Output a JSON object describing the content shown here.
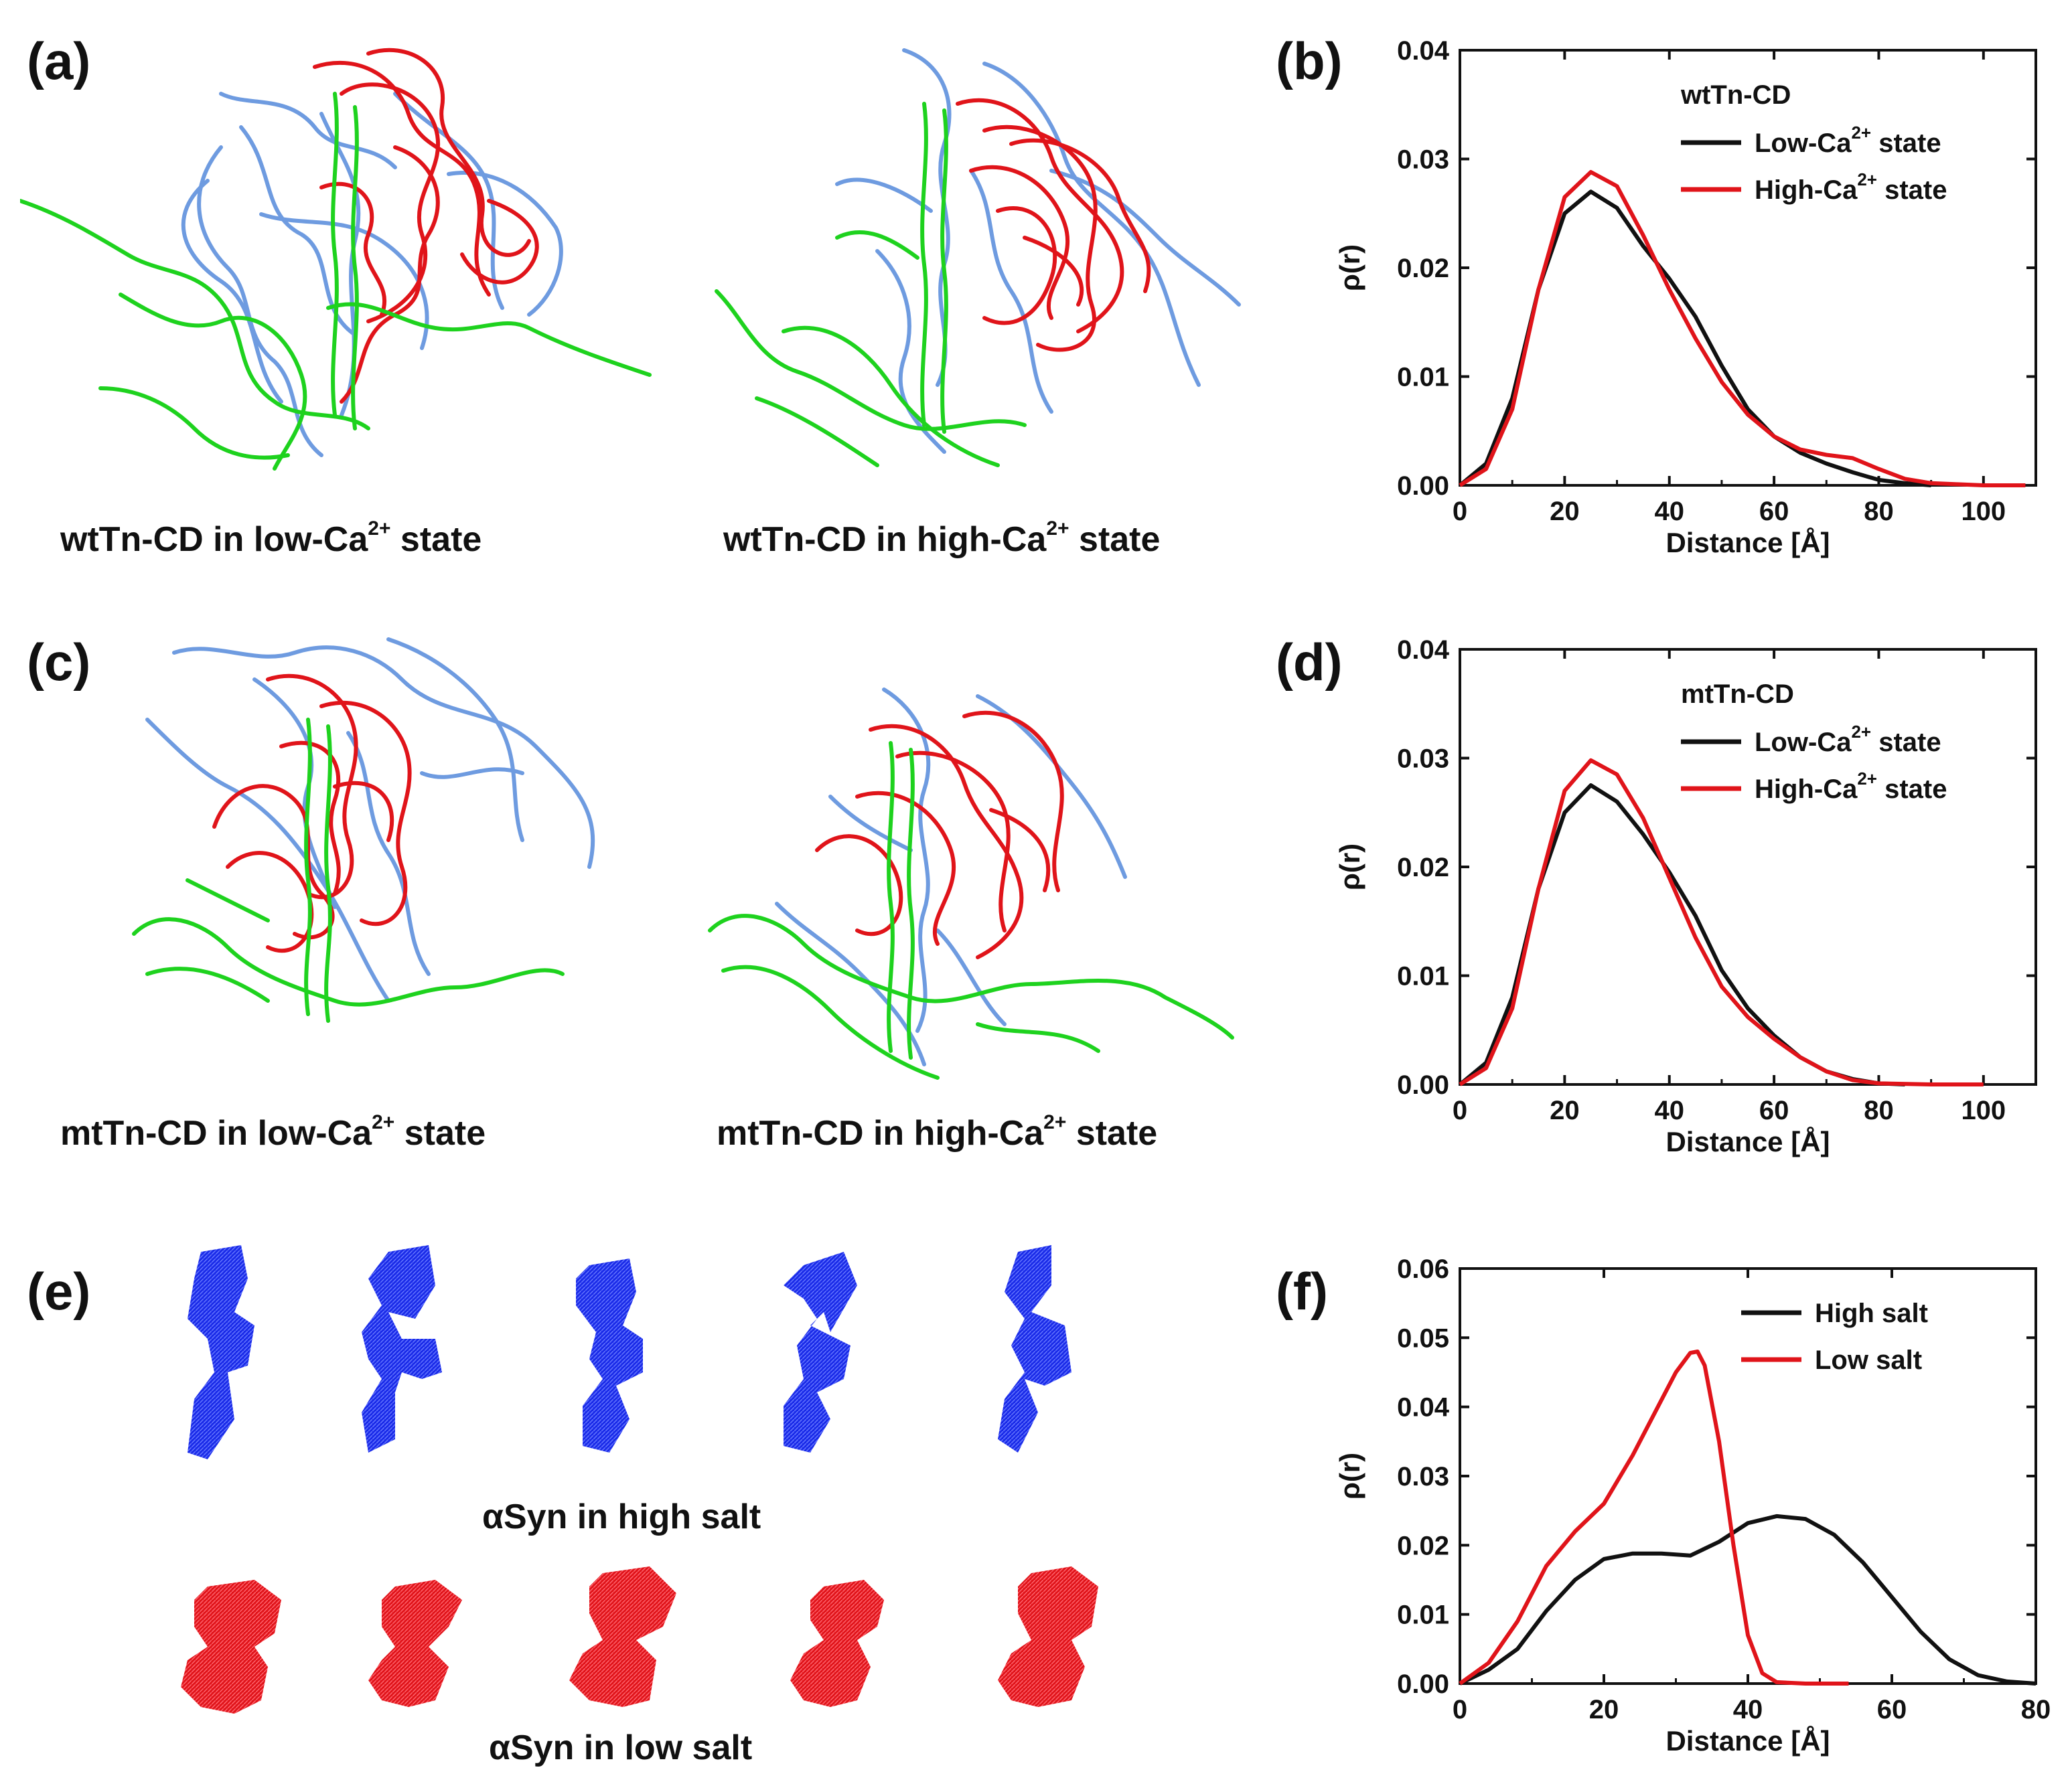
{
  "panels": {
    "a": {
      "label": "(a)",
      "caption_left": {
        "prefix": "wtTn-CD  in low-Ca",
        "sup": "2+",
        "suffix": " state"
      },
      "caption_right": {
        "prefix": "wtTn-CD  in high-Ca",
        "sup": "2+",
        "suffix": " state"
      }
    },
    "b": {
      "label": "(b)"
    },
    "c": {
      "label": "(c)",
      "caption_left": {
        "prefix": "mtTn-CD  in low-Ca",
        "sup": "2+",
        "suffix": " state"
      },
      "caption_right": {
        "prefix": "mtTn-CD  in high-Ca",
        "sup": "2+",
        "suffix": " state"
      }
    },
    "d": {
      "label": "(d)"
    },
    "e": {
      "label": "(e)",
      "caption_top": "αSyn in high salt",
      "caption_bottom": "αSyn in low salt"
    },
    "f": {
      "label": "(f)"
    }
  },
  "colors": {
    "red": "#e0141a",
    "blue": "#1a2be8",
    "black": "#111111",
    "green": "#1ed21e",
    "lightblue": "#6e9be0"
  },
  "chart_data": [
    {
      "id": "b",
      "type": "line",
      "title": "",
      "xlabel": "Distance [Å]",
      "ylabel": "ρ(r)",
      "xlim": [
        0,
        110
      ],
      "ylim": [
        0,
        0.04
      ],
      "xticks": [
        0,
        20,
        40,
        60,
        80,
        100
      ],
      "yticks": [
        "0.00",
        "0.01",
        "0.02",
        "0.03",
        "0.04"
      ],
      "legend_title": "wtTn-CD",
      "legend_position": "top-right",
      "series": [
        {
          "name_prefix": "Low-Ca",
          "name_sup": "2+",
          "name_suffix": " state",
          "color": "#111111",
          "x": [
            0,
            5,
            10,
            15,
            20,
            25,
            30,
            35,
            40,
            45,
            50,
            55,
            60,
            65,
            70,
            75,
            80,
            85,
            90
          ],
          "y": [
            0.0,
            0.002,
            0.008,
            0.018,
            0.025,
            0.027,
            0.0255,
            0.022,
            0.019,
            0.0155,
            0.011,
            0.007,
            0.0045,
            0.003,
            0.002,
            0.0012,
            0.0005,
            0.0002,
            0.0
          ]
        },
        {
          "name_prefix": "High-Ca",
          "name_sup": "2+",
          "name_suffix": " state",
          "color": "#e0141a",
          "x": [
            0,
            5,
            10,
            15,
            20,
            25,
            30,
            35,
            40,
            45,
            50,
            55,
            60,
            65,
            70,
            75,
            80,
            85,
            90,
            95,
            100,
            108
          ],
          "y": [
            0.0,
            0.0015,
            0.007,
            0.018,
            0.0265,
            0.0288,
            0.0275,
            0.023,
            0.018,
            0.0135,
            0.0095,
            0.0065,
            0.0045,
            0.0033,
            0.0028,
            0.0025,
            0.0015,
            0.0006,
            0.0002,
            0.0001,
            0.0,
            0.0
          ]
        }
      ]
    },
    {
      "id": "d",
      "type": "line",
      "title": "",
      "xlabel": "Distance [Å]",
      "ylabel": "ρ(r)",
      "xlim": [
        0,
        110
      ],
      "ylim": [
        0,
        0.04
      ],
      "xticks": [
        0,
        20,
        40,
        60,
        80,
        100
      ],
      "yticks": [
        "0.00",
        "0.01",
        "0.02",
        "0.03",
        "0.04"
      ],
      "legend_title": "mtTn-CD",
      "legend_position": "top-right",
      "series": [
        {
          "name_prefix": "Low-Ca",
          "name_sup": "2+",
          "name_suffix": " state",
          "color": "#111111",
          "x": [
            0,
            5,
            10,
            15,
            20,
            25,
            30,
            35,
            40,
            45,
            50,
            55,
            60,
            65,
            70,
            75,
            80,
            85
          ],
          "y": [
            0.0,
            0.002,
            0.008,
            0.018,
            0.025,
            0.0275,
            0.026,
            0.023,
            0.0195,
            0.0155,
            0.0105,
            0.007,
            0.0045,
            0.0025,
            0.0012,
            0.0005,
            0.0001,
            0.0
          ]
        },
        {
          "name_prefix": "High-Ca",
          "name_sup": "2+",
          "name_suffix": " state",
          "color": "#e0141a",
          "x": [
            0,
            5,
            10,
            15,
            20,
            25,
            30,
            35,
            40,
            45,
            50,
            55,
            60,
            65,
            70,
            75,
            80,
            90,
            100
          ],
          "y": [
            0.0,
            0.0015,
            0.007,
            0.018,
            0.027,
            0.0298,
            0.0285,
            0.0245,
            0.019,
            0.0135,
            0.009,
            0.0062,
            0.0042,
            0.0025,
            0.0012,
            0.0004,
            0.0001,
            0.0,
            0.0
          ]
        }
      ]
    },
    {
      "id": "f",
      "type": "line",
      "title": "",
      "xlabel": "Distance [Å]",
      "ylabel": "ρ(r)",
      "xlim": [
        0,
        80
      ],
      "ylim": [
        0,
        0.06
      ],
      "xticks": [
        0,
        20,
        40,
        60,
        80
      ],
      "yticks": [
        "0.00",
        "0.01",
        "0.02",
        "0.03",
        "0.04",
        "0.05",
        "0.06"
      ],
      "legend_title": "",
      "legend_position": "top-right",
      "series": [
        {
          "name_prefix": "High salt",
          "name_sup": "",
          "name_suffix": "",
          "color": "#111111",
          "x": [
            0,
            4,
            8,
            12,
            16,
            20,
            24,
            28,
            32,
            36,
            40,
            44,
            48,
            52,
            56,
            60,
            64,
            68,
            72,
            76,
            80
          ],
          "y": [
            0.0,
            0.002,
            0.005,
            0.0105,
            0.015,
            0.018,
            0.0188,
            0.0188,
            0.0185,
            0.0205,
            0.0232,
            0.0242,
            0.0238,
            0.0215,
            0.0175,
            0.0125,
            0.0075,
            0.0035,
            0.0012,
            0.0003,
            0.0
          ]
        },
        {
          "name_prefix": "Low salt",
          "name_sup": "",
          "name_suffix": "",
          "color": "#e0141a",
          "x": [
            0,
            4,
            8,
            12,
            16,
            20,
            24,
            28,
            30,
            32,
            33,
            34,
            36,
            38,
            40,
            42,
            44,
            48,
            54
          ],
          "y": [
            0.0,
            0.003,
            0.009,
            0.017,
            0.022,
            0.026,
            0.033,
            0.041,
            0.045,
            0.0478,
            0.048,
            0.046,
            0.035,
            0.02,
            0.007,
            0.0015,
            0.0002,
            0.0,
            0.0
          ]
        }
      ]
    }
  ]
}
